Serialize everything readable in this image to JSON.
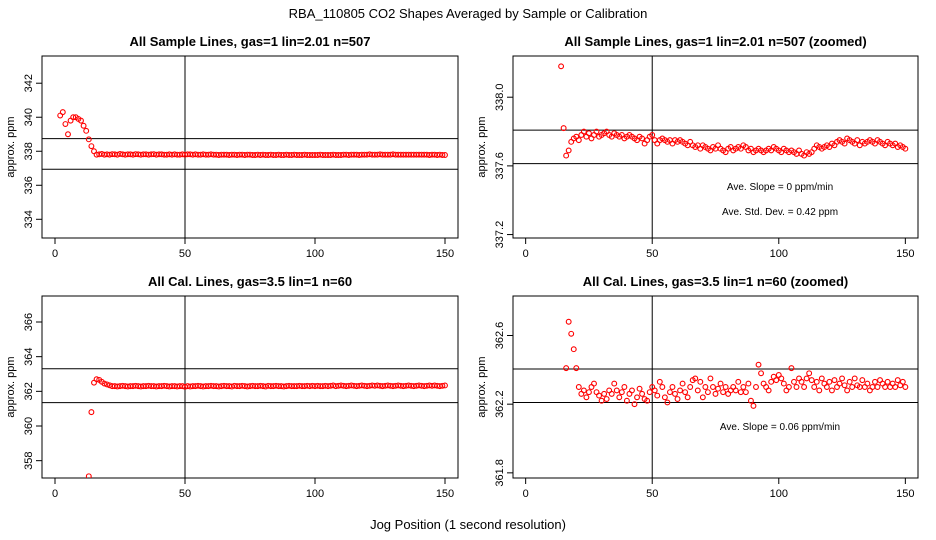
{
  "figure": {
    "title": "RBA_110805  CO2 Shapes Averaged by Sample or Calibration",
    "xlabel": "Jog Position (1 second resolution)"
  },
  "colors": {
    "points": "#ff0000",
    "axes": "#000000",
    "background": "#ffffff"
  },
  "chart_data": [
    {
      "type": "scatter",
      "title": "All Sample Lines, gas=1 lin=2.01 n=507",
      "ylabel": "approx. ppm",
      "xlim": [
        -5,
        155
      ],
      "ylim": [
        332.9,
        343.6
      ],
      "xticks": [
        0,
        50,
        100,
        150
      ],
      "yticks": [
        334,
        336,
        338,
        340,
        342
      ],
      "hlines": [
        338.74,
        336.94
      ],
      "vline": 50,
      "x": [
        2,
        3,
        4,
        5,
        6,
        7,
        8,
        9,
        10,
        11,
        12,
        13,
        14,
        15,
        16,
        17,
        18,
        19,
        20,
        21,
        22,
        23,
        24,
        25,
        26,
        27,
        28,
        29,
        30,
        31,
        32,
        33,
        34,
        35,
        36,
        37,
        38,
        39,
        40,
        41,
        42,
        43,
        44,
        45,
        46,
        47,
        48,
        49,
        50,
        51,
        52,
        53,
        54,
        55,
        56,
        57,
        58,
        59,
        60,
        61,
        62,
        63,
        64,
        65,
        66,
        67,
        68,
        69,
        70,
        71,
        72,
        73,
        74,
        75,
        76,
        77,
        78,
        79,
        80,
        81,
        82,
        83,
        84,
        85,
        86,
        87,
        88,
        89,
        90,
        91,
        92,
        93,
        94,
        95,
        96,
        97,
        98,
        99,
        100,
        101,
        102,
        103,
        104,
        105,
        106,
        107,
        108,
        109,
        110,
        111,
        112,
        113,
        114,
        115,
        116,
        117,
        118,
        119,
        120,
        121,
        122,
        123,
        124,
        125,
        126,
        127,
        128,
        129,
        130,
        131,
        132,
        133,
        134,
        135,
        136,
        137,
        138,
        139,
        140,
        141,
        142,
        143,
        144,
        145,
        146,
        147,
        148,
        149,
        150
      ],
      "y": [
        340.1,
        340.3,
        339.6,
        339.0,
        339.8,
        340.0,
        340.0,
        339.9,
        339.8,
        339.5,
        339.2,
        338.7,
        338.3,
        338.0,
        337.8,
        337.82,
        337.84,
        337.8,
        337.82,
        337.8,
        337.83,
        337.82,
        337.8,
        337.84,
        337.82,
        337.8,
        337.82,
        337.82,
        337.8,
        337.83,
        337.82,
        337.8,
        337.82,
        337.82,
        337.8,
        337.82,
        337.83,
        337.8,
        337.82,
        337.82,
        337.8,
        337.8,
        337.82,
        337.8,
        337.82,
        337.8,
        337.8,
        337.82,
        337.8,
        337.82,
        337.82,
        337.8,
        337.82,
        337.8,
        337.8,
        337.82,
        337.8,
        337.8,
        337.82,
        337.8,
        337.8,
        337.78,
        337.8,
        337.8,
        337.8,
        337.78,
        337.8,
        337.8,
        337.78,
        337.8,
        337.8,
        337.78,
        337.8,
        337.8,
        337.78,
        337.78,
        337.8,
        337.78,
        337.8,
        337.78,
        337.78,
        337.8,
        337.78,
        337.78,
        337.8,
        337.78,
        337.78,
        337.8,
        337.78,
        337.78,
        337.8,
        337.78,
        337.78,
        337.78,
        337.8,
        337.78,
        337.78,
        337.78,
        337.78,
        337.78,
        337.8,
        337.78,
        337.78,
        337.78,
        337.78,
        337.8,
        337.78,
        337.78,
        337.78,
        337.8,
        337.8,
        337.78,
        337.8,
        337.8,
        337.8,
        337.78,
        337.8,
        337.8,
        337.8,
        337.82,
        337.8,
        337.8,
        337.8,
        337.82,
        337.8,
        337.8,
        337.8,
        337.8,
        337.82,
        337.8,
        337.8,
        337.8,
        337.8,
        337.8,
        337.8,
        337.8,
        337.8,
        337.8,
        337.8,
        337.8,
        337.8,
        337.8,
        337.78,
        337.8,
        337.8,
        337.78,
        337.8,
        337.78,
        337.78
      ],
      "annotations": []
    },
    {
      "type": "scatter",
      "title": "All Sample Lines, gas=1 lin=2.01 n=507 (zoomed)",
      "ylabel": "approx. ppm",
      "xlim": [
        -5,
        155
      ],
      "ylim": [
        337.18,
        338.24
      ],
      "xticks": [
        0,
        50,
        100,
        150
      ],
      "yticks": [
        337.2,
        337.6,
        338.0
      ],
      "hlines": [
        337.808,
        337.613
      ],
      "vline": 50,
      "x": [
        14,
        15,
        16,
        17,
        18,
        19,
        20,
        21,
        22,
        23,
        24,
        25,
        26,
        27,
        28,
        29,
        30,
        31,
        32,
        33,
        34,
        35,
        36,
        37,
        38,
        39,
        40,
        41,
        42,
        43,
        44,
        45,
        46,
        47,
        48,
        49,
        50,
        51,
        52,
        53,
        54,
        55,
        56,
        57,
        58,
        59,
        60,
        61,
        62,
        63,
        64,
        65,
        66,
        67,
        68,
        69,
        70,
        71,
        72,
        73,
        74,
        75,
        76,
        77,
        78,
        79,
        80,
        81,
        82,
        83,
        84,
        85,
        86,
        87,
        88,
        89,
        90,
        91,
        92,
        93,
        94,
        95,
        96,
        97,
        98,
        99,
        100,
        101,
        102,
        103,
        104,
        105,
        106,
        107,
        108,
        109,
        110,
        111,
        112,
        113,
        114,
        115,
        116,
        117,
        118,
        119,
        120,
        121,
        122,
        123,
        124,
        125,
        126,
        127,
        128,
        129,
        130,
        131,
        132,
        133,
        134,
        135,
        136,
        137,
        138,
        139,
        140,
        141,
        142,
        143,
        144,
        145,
        146,
        147,
        148,
        149,
        150
      ],
      "y": [
        338.18,
        337.82,
        337.66,
        337.69,
        337.74,
        337.76,
        337.77,
        337.75,
        337.78,
        337.8,
        337.77,
        337.79,
        337.76,
        337.78,
        337.8,
        337.77,
        337.78,
        337.79,
        337.8,
        337.78,
        337.77,
        337.79,
        337.78,
        337.77,
        337.78,
        337.76,
        337.77,
        337.78,
        337.77,
        337.76,
        337.75,
        337.77,
        337.76,
        337.73,
        337.75,
        337.77,
        337.78,
        337.75,
        337.73,
        337.75,
        337.76,
        337.75,
        337.74,
        337.75,
        337.73,
        337.75,
        337.74,
        337.75,
        337.74,
        337.73,
        337.72,
        337.74,
        337.72,
        337.71,
        337.72,
        337.7,
        337.72,
        337.71,
        337.7,
        337.69,
        337.71,
        337.7,
        337.72,
        337.7,
        337.69,
        337.68,
        337.7,
        337.71,
        337.69,
        337.7,
        337.71,
        337.7,
        337.72,
        337.71,
        337.69,
        337.7,
        337.68,
        337.69,
        337.7,
        337.69,
        337.68,
        337.69,
        337.7,
        337.69,
        337.71,
        337.7,
        337.69,
        337.68,
        337.7,
        337.69,
        337.68,
        337.69,
        337.68,
        337.67,
        337.69,
        337.67,
        337.66,
        337.68,
        337.67,
        337.68,
        337.7,
        337.72,
        337.71,
        337.7,
        337.71,
        337.72,
        337.71,
        337.73,
        337.72,
        337.74,
        337.75,
        337.74,
        337.73,
        337.76,
        337.75,
        337.74,
        337.73,
        337.75,
        337.72,
        337.74,
        337.73,
        337.74,
        337.75,
        337.74,
        337.73,
        337.75,
        337.74,
        337.73,
        337.72,
        337.74,
        337.73,
        337.72,
        337.73,
        337.71,
        337.72,
        337.71,
        337.7
      ],
      "annotations": [
        "Ave. Slope =  0  ppm/min",
        "Ave. Std. Dev. =  0.42  ppm"
      ]
    },
    {
      "type": "scatter",
      "title": "All Cal. Lines, gas=3.5 lin=1 n=60",
      "ylabel": "approx. ppm",
      "xlim": [
        -5,
        155
      ],
      "ylim": [
        357.0,
        367.5
      ],
      "xticks": [
        0,
        50,
        100,
        150
      ],
      "yticks": [
        358,
        360,
        362,
        364,
        366
      ],
      "hlines": [
        363.3,
        361.35
      ],
      "vline": 50,
      "x": [
        13,
        14,
        15,
        16,
        17,
        18,
        19,
        20,
        21,
        22,
        23,
        24,
        25,
        26,
        27,
        28,
        29,
        30,
        31,
        32,
        33,
        34,
        35,
        36,
        37,
        38,
        39,
        40,
        41,
        42,
        43,
        44,
        45,
        46,
        47,
        48,
        49,
        50,
        51,
        52,
        53,
        54,
        55,
        56,
        57,
        58,
        59,
        60,
        61,
        62,
        63,
        64,
        65,
        66,
        67,
        68,
        69,
        70,
        71,
        72,
        73,
        74,
        75,
        76,
        77,
        78,
        79,
        80,
        81,
        82,
        83,
        84,
        85,
        86,
        87,
        88,
        89,
        90,
        91,
        92,
        93,
        94,
        95,
        96,
        97,
        98,
        99,
        100,
        101,
        102,
        103,
        104,
        105,
        106,
        107,
        108,
        109,
        110,
        111,
        112,
        113,
        114,
        115,
        116,
        117,
        118,
        119,
        120,
        121,
        122,
        123,
        124,
        125,
        126,
        127,
        128,
        129,
        130,
        131,
        132,
        133,
        134,
        135,
        136,
        137,
        138,
        139,
        140,
        141,
        142,
        143,
        144,
        145,
        146,
        147,
        148,
        149,
        150
      ],
      "y": [
        357.1,
        360.8,
        362.5,
        362.7,
        362.66,
        362.55,
        362.45,
        362.4,
        362.35,
        362.3,
        362.3,
        362.28,
        362.3,
        362.32,
        362.3,
        362.28,
        362.3,
        362.3,
        362.32,
        362.3,
        362.28,
        362.3,
        362.3,
        362.32,
        362.3,
        362.3,
        362.28,
        362.3,
        362.3,
        362.32,
        362.3,
        362.28,
        362.3,
        362.3,
        362.28,
        362.3,
        362.3,
        362.26,
        362.3,
        362.28,
        362.3,
        362.3,
        362.32,
        362.3,
        362.28,
        362.3,
        362.3,
        362.32,
        362.3,
        362.3,
        362.28,
        362.3,
        362.32,
        362.3,
        362.3,
        362.28,
        362.32,
        362.3,
        362.3,
        362.32,
        362.3,
        362.28,
        362.3,
        362.32,
        362.3,
        362.3,
        362.32,
        362.3,
        362.28,
        362.32,
        362.3,
        362.3,
        362.32,
        362.3,
        362.3,
        362.28,
        362.3,
        362.32,
        362.3,
        362.3,
        362.3,
        362.32,
        362.3,
        362.3,
        362.32,
        362.3,
        362.32,
        362.3,
        362.32,
        362.3,
        362.3,
        362.32,
        362.3,
        362.32,
        362.34,
        362.3,
        362.32,
        362.34,
        362.32,
        362.3,
        362.32,
        362.34,
        362.32,
        362.3,
        362.32,
        362.34,
        362.32,
        362.3,
        362.32,
        362.34,
        362.32,
        362.34,
        362.32,
        362.3,
        362.32,
        362.34,
        362.32,
        362.3,
        362.32,
        362.34,
        362.32,
        362.3,
        362.32,
        362.34,
        362.32,
        362.3,
        362.32,
        362.34,
        362.32,
        362.3,
        362.32,
        362.34,
        362.32,
        362.34,
        362.32,
        362.3,
        362.32,
        362.34
      ],
      "annotations": []
    },
    {
      "type": "scatter",
      "title": "All Cal. Lines, gas=3.5 lin=1 n=60 (zoomed)",
      "ylabel": "approx. ppm",
      "xlim": [
        -5,
        155
      ],
      "ylim": [
        361.77,
        362.83
      ],
      "xticks": [
        0,
        50,
        100,
        150
      ],
      "yticks": [
        361.8,
        362.2,
        362.6
      ],
      "hlines": [
        362.405,
        362.21
      ],
      "vline": 50,
      "x": [
        16,
        17,
        18,
        19,
        20,
        21,
        22,
        23,
        24,
        25,
        26,
        27,
        28,
        29,
        30,
        31,
        32,
        33,
        34,
        35,
        36,
        37,
        38,
        39,
        40,
        41,
        42,
        43,
        44,
        45,
        46,
        47,
        48,
        49,
        50,
        51,
        52,
        53,
        54,
        55,
        56,
        57,
        58,
        59,
        60,
        61,
        62,
        63,
        64,
        65,
        66,
        67,
        68,
        69,
        70,
        71,
        72,
        73,
        74,
        75,
        76,
        77,
        78,
        79,
        80,
        81,
        82,
        83,
        84,
        85,
        86,
        87,
        88,
        89,
        90,
        91,
        92,
        93,
        94,
        95,
        96,
        97,
        98,
        99,
        100,
        101,
        102,
        103,
        104,
        105,
        106,
        107,
        108,
        109,
        110,
        111,
        112,
        113,
        114,
        115,
        116,
        117,
        118,
        119,
        120,
        121,
        122,
        123,
        124,
        125,
        126,
        127,
        128,
        129,
        130,
        131,
        132,
        133,
        134,
        135,
        136,
        137,
        138,
        139,
        140,
        141,
        142,
        143,
        144,
        145,
        146,
        147,
        148,
        149,
        150
      ],
      "y": [
        362.41,
        362.68,
        362.61,
        362.52,
        362.41,
        362.3,
        362.26,
        362.28,
        362.24,
        362.27,
        362.3,
        362.32,
        362.27,
        362.25,
        362.22,
        362.26,
        362.23,
        362.28,
        362.26,
        362.32,
        362.28,
        362.24,
        362.27,
        362.3,
        362.22,
        362.26,
        362.28,
        362.2,
        362.24,
        362.29,
        362.26,
        362.23,
        362.22,
        362.27,
        362.3,
        362.28,
        362.25,
        362.33,
        362.3,
        362.24,
        362.21,
        362.27,
        362.3,
        362.26,
        362.23,
        362.28,
        362.32,
        362.27,
        362.24,
        362.3,
        362.34,
        362.35,
        362.28,
        362.33,
        362.24,
        362.3,
        362.27,
        362.35,
        362.3,
        362.26,
        362.29,
        362.32,
        362.27,
        362.3,
        362.26,
        362.28,
        362.3,
        362.28,
        362.33,
        362.27,
        362.3,
        362.27,
        362.32,
        362.22,
        362.19,
        362.3,
        362.43,
        362.38,
        362.32,
        362.3,
        362.28,
        362.33,
        362.36,
        362.34,
        362.37,
        362.35,
        362.32,
        362.28,
        362.3,
        362.41,
        362.33,
        362.3,
        362.35,
        362.33,
        362.3,
        362.35,
        362.38,
        362.34,
        362.3,
        362.33,
        362.28,
        362.35,
        362.32,
        362.3,
        362.33,
        362.28,
        362.34,
        362.3,
        362.32,
        362.35,
        362.31,
        362.28,
        362.33,
        362.3,
        362.35,
        362.31,
        362.3,
        362.34,
        362.3,
        362.32,
        362.28,
        362.3,
        362.33,
        362.3,
        362.34,
        362.32,
        362.3,
        362.33,
        362.3,
        362.32,
        362.3,
        362.34,
        362.31,
        362.33,
        362.3
      ],
      "annotations": [
        "Ave. Slope =  0.06  ppm/min"
      ]
    }
  ]
}
